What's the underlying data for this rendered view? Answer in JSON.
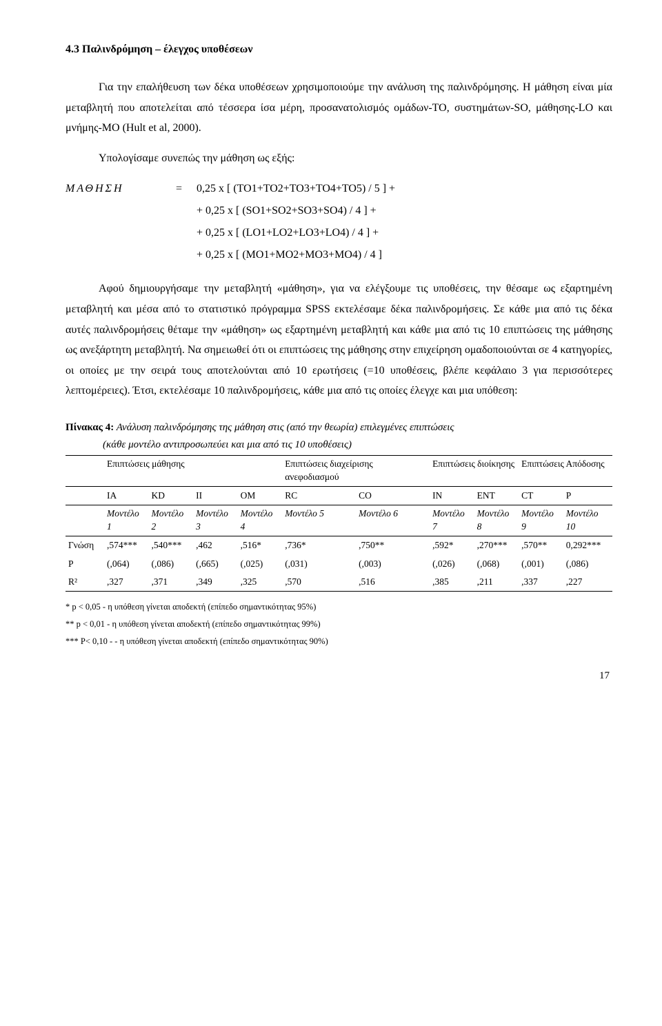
{
  "heading": "4.3 Παλινδρόμηση – έλεγχος υποθέσεων",
  "para1": "Για την επαλήθευση των δέκα υποθέσεων χρησιμοποιούμε την ανάλυση της παλινδρόμησης. Η μάθηση είναι μία μεταβλητή που αποτελείται από τέσσερα ίσα μέρη, προσανατολισμός ομάδων-ΤΟ, συστημάτων-SO, μάθησης-LO και μνήμης-MO (Hult et al, 2000).",
  "para2_lead": "Υπολογίσαμε συνεπώς την μάθηση ως εξής:",
  "formula": {
    "label": "ΜΑΘΗΣΗ",
    "eq": "=",
    "lines": [
      "0,25 x [ (TO1+TO2+TO3+TO4+TO5) / 5 ] +",
      "+ 0,25 x [ (SO1+SO2+SO3+SO4) / 4 ] +",
      "+ 0,25 x [ (LO1+LO2+LO3+LO4) / 4 ] +",
      "+ 0,25 x [ (MO1+MO2+MO3+MO4) / 4 ]"
    ]
  },
  "para3": "Αφού δημιουργήσαμε την μεταβλητή «μάθηση», για να ελέγξουμε τις υποθέσεις, την θέσαμε ως εξαρτημένη μεταβλητή και μέσα από το στατιστικό πρόγραμμα SPSS εκτελέσαμε δέκα παλινδρομήσεις. Σε κάθε μια από τις δέκα αυτές παλινδρομήσεις θέταμε την «μάθηση» ως εξαρτημένη μεταβλητή και κάθε μια από τις 10 επιπτώσεις της μάθησης ως ανεξάρτητη μεταβλητή. Να σημειωθεί ότι οι επιπτώσεις της μάθησης στην επιχείρηση ομαδοποιούνται σε 4 κατηγορίες, οι οποίες με την σειρά τους αποτελούνται από 10 ερωτήσεις (=10 υποθέσεις, βλέπε κεφάλαιο 3 για περισσότερες λεπτομέρειες). Έτσι, εκτελέσαμε 10 παλινδρομήσεις, κάθε μια από τις οποίες έλεγχε και μια υπόθεση:",
  "table": {
    "caption_bold": "Πίνακας 4:",
    "caption_rest": " Ανάλυση παλινδρόμησης της μάθηση στις (από την θεωρία) επιλεγμένες επιπτώσεις",
    "caption_line2": "(κάθε μοντέλο αντιπροσωπεύει και μια από τις 10 υποθέσεις)",
    "group_headers": [
      "Επιπτώσεις μάθησης",
      "Επιπτώσεις διαχείρισης ανεφοδιασμού",
      "Επιπτώσεις διοίκησης",
      "Επιπτώσεις Απόδοσης"
    ],
    "col_codes": [
      "IA",
      "KD",
      "II",
      "OM",
      "RC",
      "CO",
      "IN",
      "ENT",
      "CT",
      "P"
    ],
    "model_labels": [
      "Μοντέλο 1",
      "Μοντέλο 2",
      "Μοντέλο 3",
      "Μοντέλο 4",
      "Μοντέλο 5",
      "Μοντέλο 6",
      "Μοντέλο 7",
      "Μοντέλο 8",
      "Μοντέλο 9",
      "Μοντέλο 10"
    ],
    "rows": {
      "gnosi_label": "Γνώση",
      "gnosi": [
        ",574***",
        ",540***",
        ",462",
        ",516*",
        ",736*",
        ",750**",
        ",592*",
        ",270***",
        ",570**",
        "0,292***"
      ],
      "p_label": "P",
      "p": [
        "(,064)",
        "(,086)",
        "(,665)",
        "(,025)",
        "(,031)",
        "(,003)",
        "(,026)",
        "(,068)",
        "(,001)",
        "(,086)"
      ],
      "r2_label": "R²",
      "r2": [
        ",327",
        ",371",
        ",349",
        ",325",
        ",570",
        ",516",
        ",385",
        ",211",
        ",337",
        ",227"
      ]
    }
  },
  "footnotes": [
    "* p < 0,05 - η υπόθεση γίνεται αποδεκτή (επίπεδο σημαντικότητας 95%)",
    "** p < 0,01 - η υπόθεση γίνεται αποδεκτή (επίπεδο σημαντικότητας 99%)",
    "*** P< 0,10 - - η υπόθεση γίνεται αποδεκτή (επίπεδο σημαντικότητας 90%)"
  ],
  "page_number": "17"
}
